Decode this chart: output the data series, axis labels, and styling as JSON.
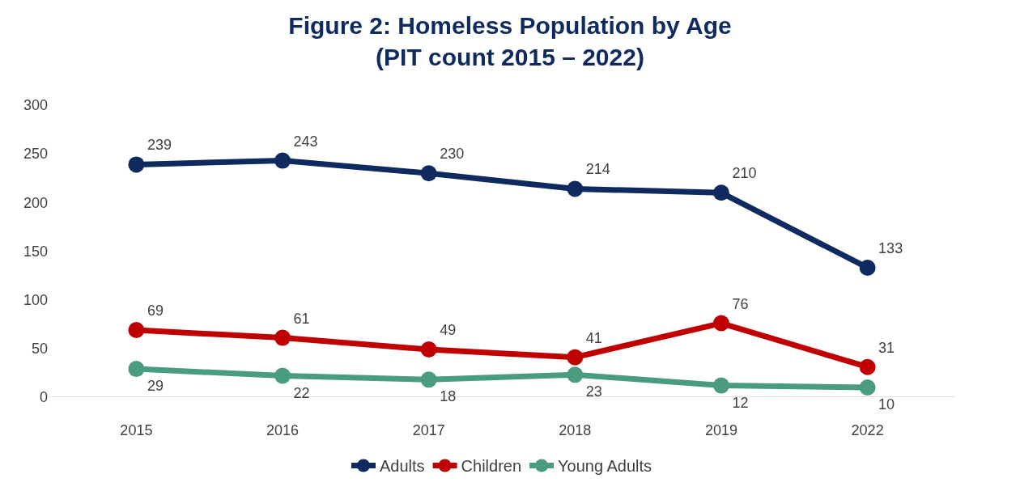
{
  "chart_data": {
    "type": "line",
    "title": "Figure 2: Homeless Population by Age\n(PIT count 2015 – 2022)",
    "categories": [
      "2015",
      "2016",
      "2017",
      "2018",
      "2019",
      "2022"
    ],
    "series": [
      {
        "name": "Adults",
        "color": "#0e2a5e",
        "values": [
          239,
          243,
          230,
          214,
          210,
          133
        ]
      },
      {
        "name": "Children",
        "color": "#c00000",
        "values": [
          69,
          61,
          49,
          41,
          76,
          31
        ]
      },
      {
        "name": "Young Adults",
        "color": "#4a9c80",
        "values": [
          29,
          22,
          18,
          23,
          12,
          10
        ]
      }
    ],
    "ylim": [
      0,
      300
    ],
    "yticks": [
      0,
      50,
      100,
      150,
      200,
      250,
      300
    ],
    "grid": false,
    "legend": "bottom",
    "marker": "circle",
    "line_style": "solid",
    "data_labels": true
  }
}
